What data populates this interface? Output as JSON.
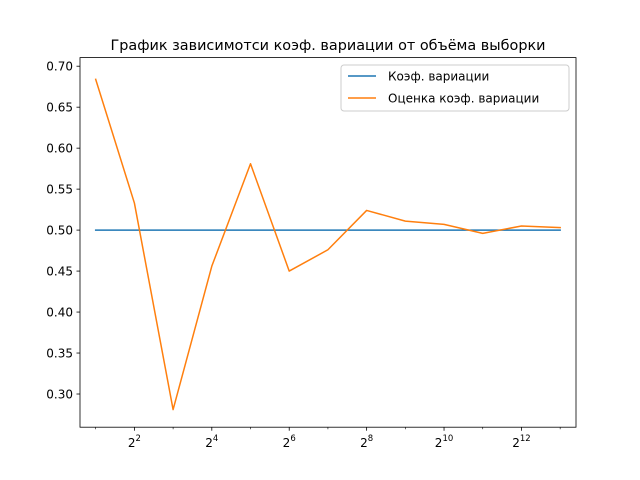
{
  "chart_data": {
    "type": "line",
    "title": "График зависимотси коэф. вариации от объёма выборки",
    "xlabel": "",
    "ylabel": "",
    "xscale": "log2",
    "x": [
      2,
      4,
      8,
      16,
      32,
      64,
      128,
      256,
      512,
      1024,
      2048,
      4096,
      8192
    ],
    "xlim": [
      1.51,
      10880
    ],
    "ylim": [
      0.2595,
      0.7105
    ],
    "xticks": [
      {
        "value": 4,
        "base": "2",
        "exp": "2"
      },
      {
        "value": 16,
        "base": "2",
        "exp": "4"
      },
      {
        "value": 64,
        "base": "2",
        "exp": "6"
      },
      {
        "value": 256,
        "base": "2",
        "exp": "8"
      },
      {
        "value": 1024,
        "base": "2",
        "exp": "10"
      },
      {
        "value": 4096,
        "base": "2",
        "exp": "12"
      }
    ],
    "yticks": [
      {
        "value": 0.3,
        "label": "0.30"
      },
      {
        "value": 0.35,
        "label": "0.35"
      },
      {
        "value": 0.4,
        "label": "0.40"
      },
      {
        "value": 0.45,
        "label": "0.45"
      },
      {
        "value": 0.5,
        "label": "0.50"
      },
      {
        "value": 0.55,
        "label": "0.55"
      },
      {
        "value": 0.6,
        "label": "0.60"
      },
      {
        "value": 0.65,
        "label": "0.65"
      },
      {
        "value": 0.7,
        "label": "0.70"
      }
    ],
    "grid": false,
    "legend_position": "top-right",
    "series": [
      {
        "name": "Коэф. вариации",
        "color": "#1f77b4",
        "values": [
          0.5,
          0.5,
          0.5,
          0.5,
          0.5,
          0.5,
          0.5,
          0.5,
          0.5,
          0.5,
          0.5,
          0.5,
          0.5
        ]
      },
      {
        "name": "Оценка коэф. вариации",
        "color": "#ff7f0e",
        "values": [
          0.684,
          0.533,
          0.281,
          0.456,
          0.581,
          0.45,
          0.476,
          0.524,
          0.511,
          0.507,
          0.496,
          0.505,
          0.503
        ]
      }
    ]
  }
}
